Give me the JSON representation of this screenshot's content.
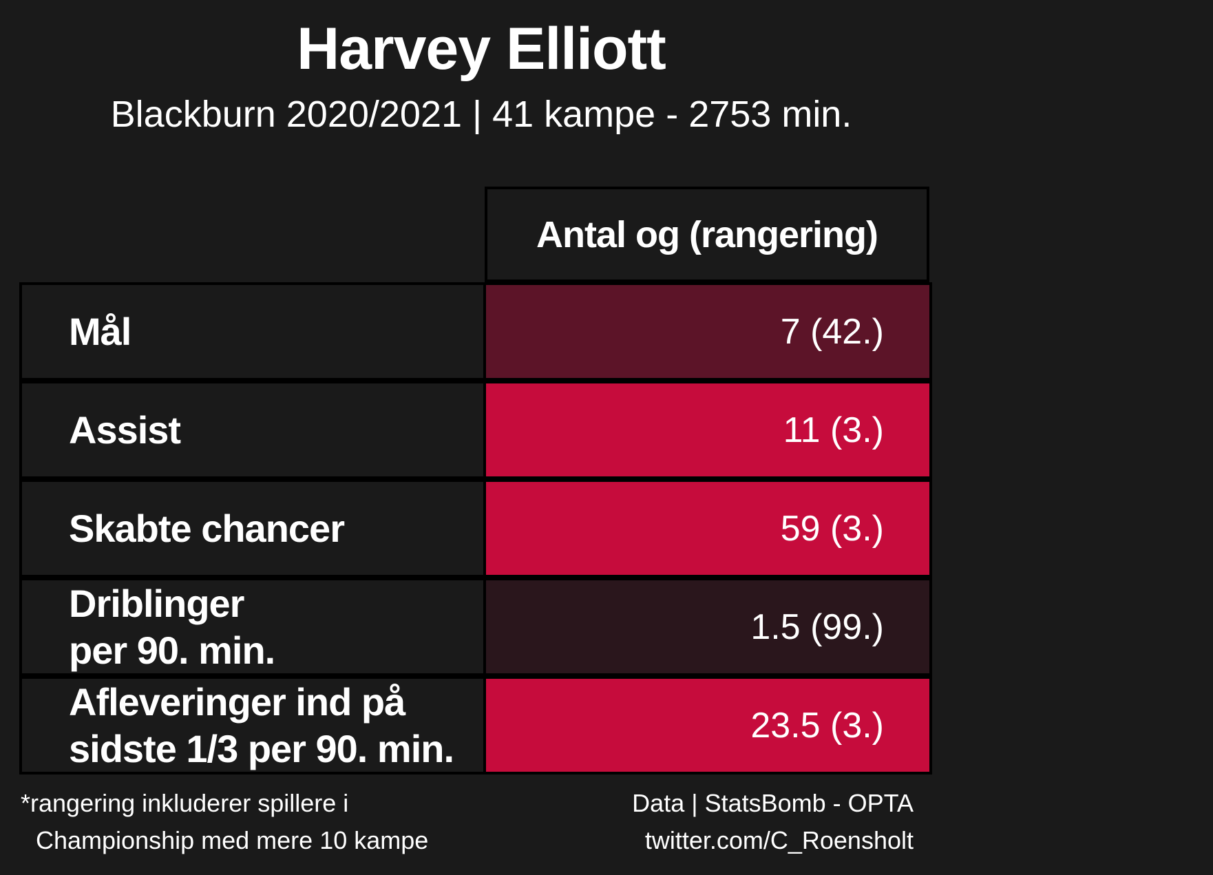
{
  "header": {
    "title": "Harvey Elliott",
    "subtitle": "Blackburn 2020/2021 | 41 kampe - 2753 min."
  },
  "table": {
    "column_header": "Antal og (rangering)",
    "rows": [
      {
        "label_line1": "Mål",
        "label_line2": "",
        "value": "7 (42.)",
        "color": "#5c1428"
      },
      {
        "label_line1": "Assist",
        "label_line2": "",
        "value": "11 (3.)",
        "color": "#c60c3c"
      },
      {
        "label_line1": "Skabte chancer",
        "label_line2": "",
        "value": "59 (3.)",
        "color": "#c60c3c"
      },
      {
        "label_line1": "Driblinger",
        "label_line2": "per 90. min.",
        "value": "1.5 (99.)",
        "color": "#2a161c"
      },
      {
        "label_line1": "Afleveringer ind på",
        "label_line2": "sidste 1/3 per 90. min.",
        "value": "23.5 (3.)",
        "color": "#c60c3c"
      }
    ]
  },
  "footer": {
    "note_line1": "*rangering inkluderer spillere i",
    "note_line2": "Championship med mere 10 kampe",
    "source": "Data | StatsBomb - OPTA",
    "handle": "twitter.com/C_Roensholt"
  },
  "colors": {
    "background": "#1a1a1a",
    "border": "#000000",
    "text": "#ffffff"
  }
}
